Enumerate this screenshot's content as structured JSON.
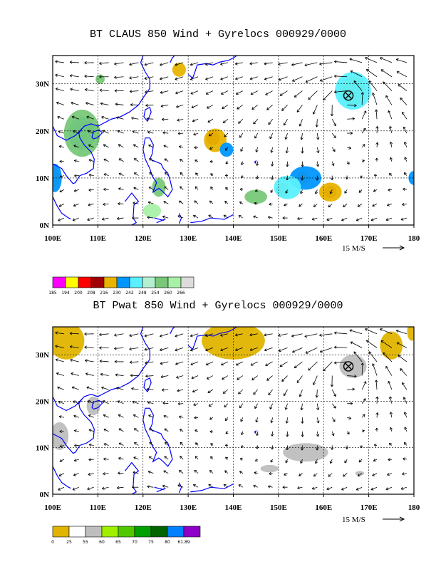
{
  "chart_data": [
    {
      "type": "map",
      "title": "BT CLAUS 850 Wind + Gyrelocs 000929/0000",
      "x_tick_labels": [
        "100E",
        "110E",
        "120E",
        "130E",
        "140E",
        "150E",
        "160E",
        "170E",
        "180"
      ],
      "y_tick_labels": [
        "0N",
        "10N",
        "20N",
        "30N"
      ],
      "lon_range": [
        100,
        180
      ],
      "lat_range": [
        0,
        36
      ],
      "grid": true,
      "vector_scale_label": "15 M/S",
      "colorbar_labels": [
        "185",
        "194",
        "200",
        "208",
        "216",
        "230",
        "242",
        "248",
        "254",
        "260",
        "266"
      ],
      "colorbar_colors": [
        "#ff00ff",
        "#ffff00",
        "#ff0000",
        "#a00000",
        "#e8b400",
        "#0096ff",
        "#5af0ff",
        "#b4f0d0",
        "#78c878",
        "#a8f0a8",
        "#dcdcdc"
      ],
      "gyre_center": {
        "lon": 165.5,
        "lat": 27.5
      }
    },
    {
      "type": "map",
      "title": "BT Pwat 850 Wind + Gyrelocs 000929/0000",
      "x_tick_labels": [
        "100E",
        "110E",
        "120E",
        "130E",
        "140E",
        "150E",
        "160E",
        "170E",
        "180"
      ],
      "y_tick_labels": [
        "0N",
        "10N",
        "20N",
        "30N"
      ],
      "lon_range": [
        100,
        180
      ],
      "lat_range": [
        0,
        36
      ],
      "grid": true,
      "vector_scale_label": "15 M/S",
      "colorbar_labels": [
        "0",
        "25",
        "55",
        "60",
        "65",
        "70",
        "75",
        "80",
        "61.89"
      ],
      "colorbar_colors": [
        "#e0b400",
        "#ffffff",
        "#bebebe",
        "#a0f000",
        "#50c800",
        "#00a000",
        "#006400",
        "#0080ff",
        "#8c00c8"
      ],
      "gyre_center": {
        "lon": 165.5,
        "lat": 27.5
      }
    }
  ]
}
